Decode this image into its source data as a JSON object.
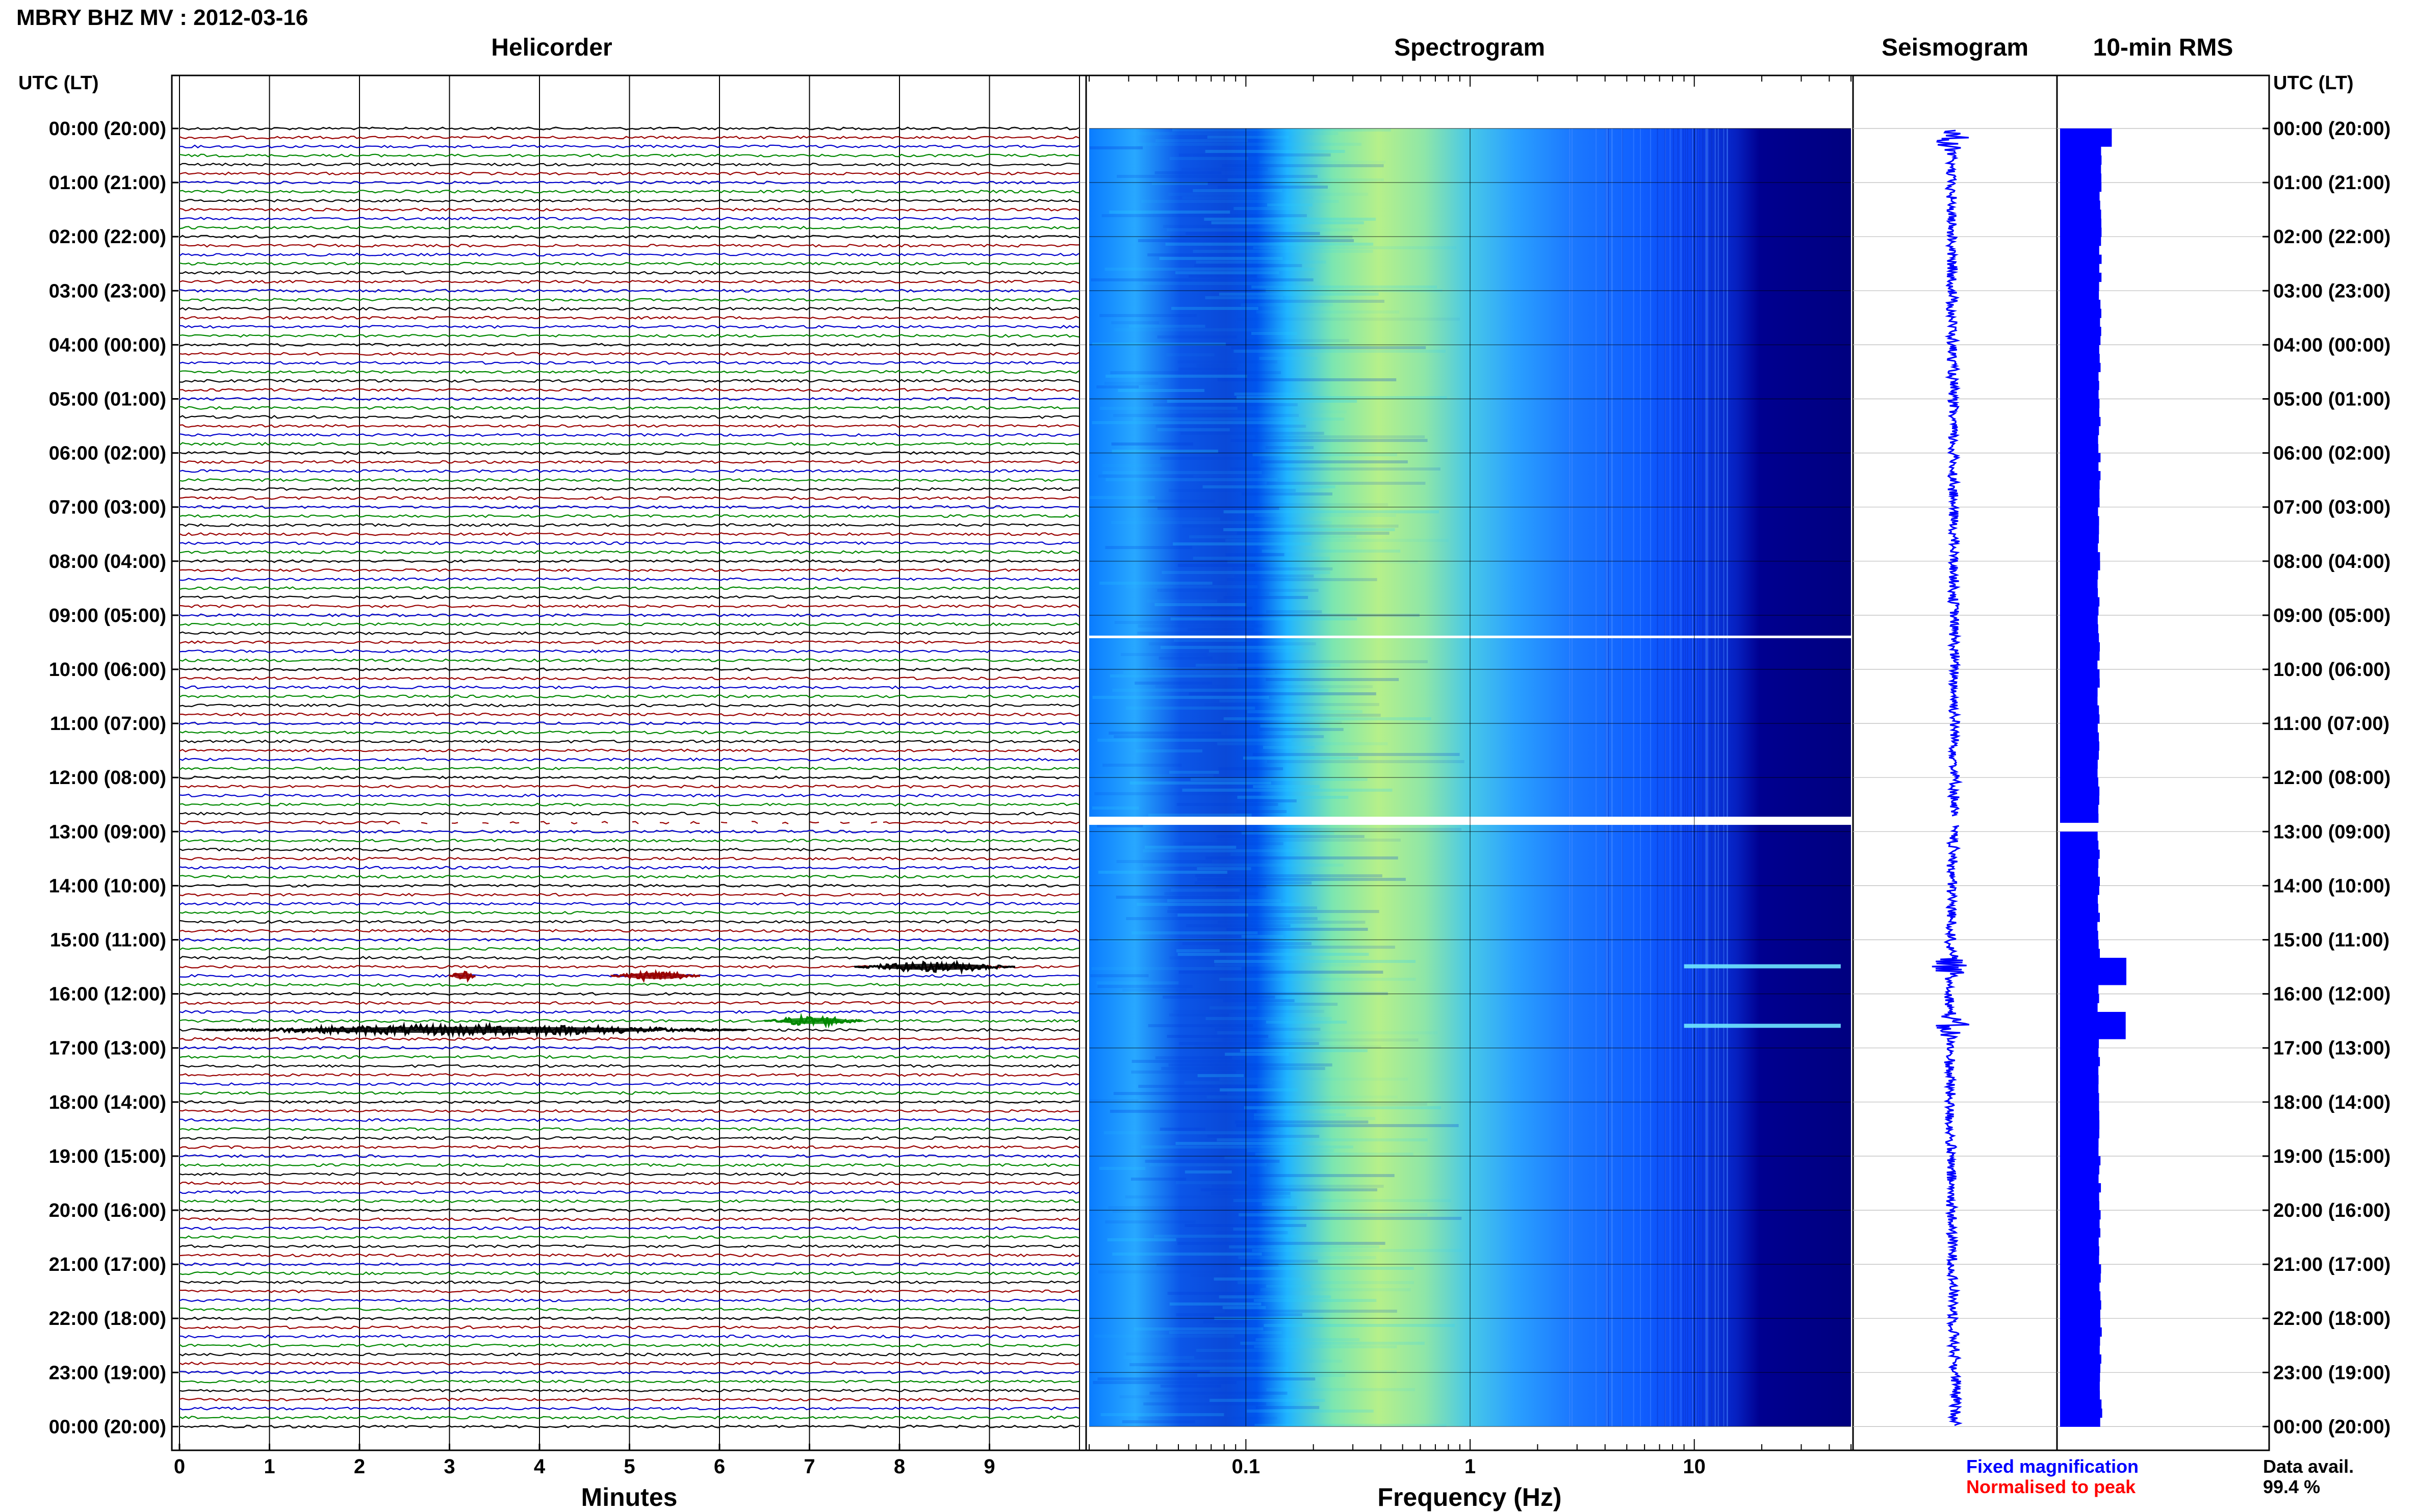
{
  "header": {
    "title": "MBRY BHZ MV : 2012-03-16",
    "left_axis_label": "UTC (LT)",
    "right_axis_label": "UTC (LT)"
  },
  "panels": {
    "helicorder": {
      "title": "Helicorder",
      "xlabel": "Minutes"
    },
    "spectrogram": {
      "title": "Spectrogram",
      "xlabel": "Frequency (Hz)"
    },
    "seismogram": {
      "title": "Seismogram"
    },
    "rms": {
      "title": "10-min RMS"
    }
  },
  "legend": {
    "fixed": "Fixed magnification",
    "normalised": "Normalised to peak",
    "data_avail_label": "Data avail.",
    "data_avail_value": "99.4 %",
    "fixed_color": "#0000ff",
    "normalised_color": "#ff0000"
  },
  "chart_data": [
    {
      "type": "line",
      "panel": "Helicorder",
      "xlabel": "Minutes",
      "x_ticks": [
        "0",
        "1",
        "2",
        "3",
        "4",
        "5",
        "6",
        "7",
        "8",
        "9"
      ],
      "xlim": [
        0,
        10
      ],
      "rows_per_hour": 6,
      "row_minutes": 10,
      "trace_colors": [
        "#000000",
        "#990000",
        "#0000cc",
        "#008800"
      ],
      "y_tick_labels": [
        "00:00 (20:00)",
        "01:00 (21:00)",
        "02:00 (22:00)",
        "03:00 (23:00)",
        "04:00 (00:00)",
        "05:00 (01:00)",
        "06:00 (02:00)",
        "07:00 (03:00)",
        "08:00 (04:00)",
        "09:00 (05:00)",
        "10:00 (06:00)",
        "11:00 (07:00)",
        "12:00 (08:00)",
        "13:00 (09:00)",
        "14:00 (10:00)",
        "15:00 (11:00)",
        "16:00 (12:00)",
        "17:00 (13:00)",
        "18:00 (14:00)",
        "19:00 (15:00)",
        "20:00 (16:00)",
        "21:00 (17:00)",
        "22:00 (18:00)",
        "23:00 (19:00)",
        "00:00 (20:00)"
      ],
      "data_gaps_utc_hours": [
        12.8
      ],
      "events": [
        {
          "time_utc": "15:30",
          "minute_start": 7.5,
          "minute_end": 9.3,
          "trace_color": "#000000"
        },
        {
          "time_utc": "15:40",
          "minute_start": 3.0,
          "minute_end": 3.3,
          "trace_color": "#990000"
        },
        {
          "time_utc": "15:40",
          "minute_start": 4.8,
          "minute_end": 5.8,
          "trace_color": "#990000"
        },
        {
          "time_utc": "16:40",
          "minute_start": 0.3,
          "minute_end": 6.3,
          "trace_color": "#000000"
        },
        {
          "time_utc": "16:30",
          "minute_start": 6.5,
          "minute_end": 7.6,
          "trace_color": "#008800"
        }
      ]
    },
    {
      "type": "heatmap",
      "panel": "Spectrogram",
      "xlabel": "Frequency (Hz)",
      "x_scale": "log",
      "xlim": [
        0.02,
        50
      ],
      "x_tick_labels": [
        "0.1",
        "1",
        "10"
      ],
      "x_tick_values": [
        0.1,
        1,
        10
      ],
      "dominant_band_hz": [
        0.15,
        0.5
      ],
      "data_gaps_utc_hours": [
        9.4,
        12.8
      ],
      "colormap": [
        "#00007f",
        "#0000ff",
        "#0080ff",
        "#00c0ff",
        "#40e0d0",
        "#a0f080",
        "#e0f060"
      ]
    },
    {
      "type": "line",
      "panel": "Seismogram",
      "color": "#0000ff",
      "spikes_utc_hours": [
        0.2,
        15.5,
        16.6
      ],
      "data_gaps_utc_hours": [
        12.8
      ]
    },
    {
      "type": "bar",
      "panel": "10-min RMS",
      "color": "#0000ff",
      "orientation": "horizontal",
      "baseline_relative": 0.62,
      "peaks": [
        {
          "time_utc": "00:00",
          "relative": 0.78
        },
        {
          "time_utc": "15:30",
          "relative": 1.0
        },
        {
          "time_utc": "16:30",
          "relative": 0.99
        }
      ]
    }
  ]
}
